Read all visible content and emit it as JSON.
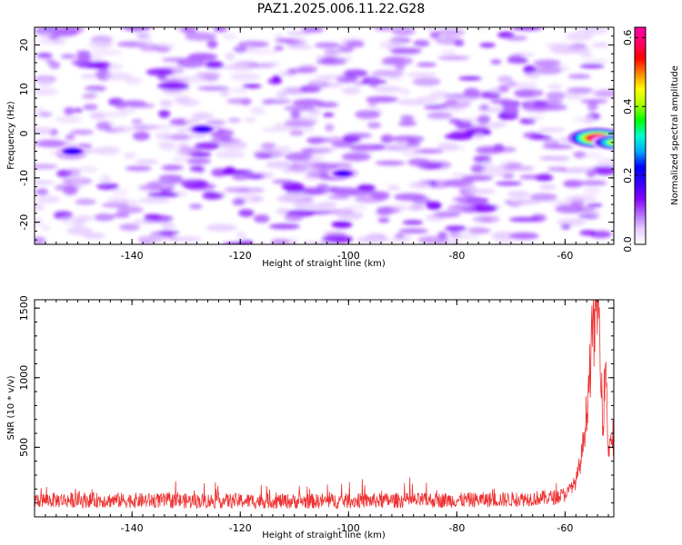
{
  "figure_title": "PAZ1.2025.006.11.22.G28",
  "chart_data": [
    {
      "type": "heatmap",
      "title": "PAZ1.2025.006.11.22.G28",
      "xlabel": "Height of straight line (km)",
      "ylabel": "Frequency (Hz)",
      "xlim": [
        -158,
        -51
      ],
      "ylim": [
        -25,
        24
      ],
      "xticks": [
        -140,
        -120,
        -100,
        -80,
        -60
      ],
      "yticks": [
        -20,
        -10,
        0,
        10,
        20
      ],
      "colorbar": {
        "label": "Normalized spectral amplitude",
        "range": [
          0,
          0.63
        ],
        "ticks": [
          0.0,
          0.2,
          0.4,
          0.6
        ],
        "colors": [
          "#ffffff",
          "#e6ccff",
          "#b266ff",
          "#7f00ff",
          "#3300ff",
          "#0000ff",
          "#00aaff",
          "#00ffcc",
          "#00ff00",
          "#aaff00",
          "#ffff00",
          "#ff8800",
          "#ff0000",
          "#ff0066",
          "#ff00aa"
        ]
      },
      "peaks": [
        {
          "x": -54,
          "y": -1,
          "value": 0.63
        },
        {
          "x": -51,
          "y": -2,
          "value": 0.4
        },
        {
          "x": -151,
          "y": -4,
          "value": 0.2
        },
        {
          "x": -127,
          "y": 1,
          "value": 0.2
        },
        {
          "x": -101,
          "y": -9,
          "value": 0.18
        }
      ],
      "background_level": 0.1
    },
    {
      "type": "line",
      "xlabel": "Height of straight line (km)",
      "ylabel": "SNR (10 * v/v)",
      "xlim": [
        -158,
        -51
      ],
      "ylim": [
        0,
        1560
      ],
      "xticks": [
        -140,
        -120,
        -100,
        -80,
        -60
      ],
      "yticks": [
        500,
        1000,
        1500
      ],
      "color": "#ee3333",
      "series": [
        {
          "x": [
            -158,
            -150,
            -140,
            -130,
            -120,
            -110,
            -100,
            -90,
            -80,
            -70,
            -62,
            -60,
            -58,
            -57,
            -56,
            -55,
            -54,
            -53.5,
            -53,
            -52.5,
            -52,
            -51.5,
            -51
          ],
          "values": [
            120,
            120,
            118,
            115,
            115,
            112,
            115,
            118,
            120,
            125,
            140,
            160,
            250,
            420,
            760,
            1280,
            1560,
            1300,
            650,
            1150,
            450,
            600,
            480
          ]
        }
      ]
    }
  ]
}
